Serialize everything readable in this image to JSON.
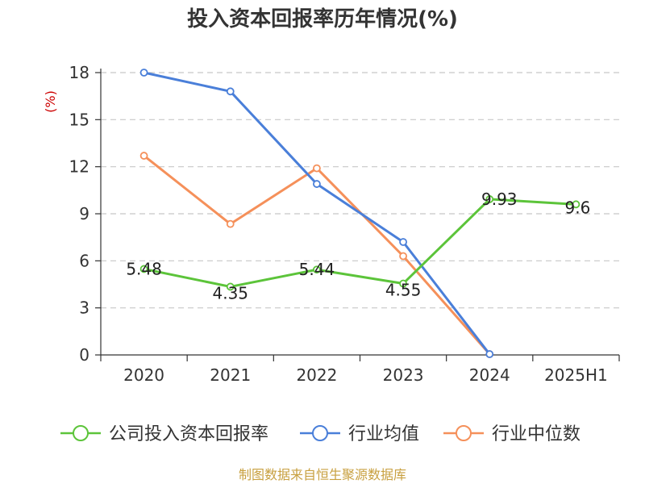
{
  "chart_data": {
    "type": "line",
    "title": "投入资本回报率历年情况(%)",
    "ylabel": "(%)",
    "categories": [
      "2020",
      "2021",
      "2022",
      "2023",
      "2024",
      "2025H1"
    ],
    "ylim": [
      0,
      18
    ],
    "yticks": [
      0,
      3,
      6,
      9,
      12,
      15,
      18
    ],
    "grid": true,
    "legend_position": "bottom",
    "series": [
      {
        "name": "公司投入资本回报率",
        "color": "#5cc43a",
        "values": [
          5.48,
          4.35,
          5.44,
          4.55,
          9.93,
          9.6
        ],
        "labels": [
          "5.48",
          "4.35",
          "5.44",
          "4.55",
          "9.93",
          "9.6"
        ]
      },
      {
        "name": "行业均值",
        "color": "#4a7fd9",
        "values": [
          18.0,
          16.8,
          10.9,
          7.2,
          0.05,
          null
        ]
      },
      {
        "name": "行业中位数",
        "color": "#f5905a",
        "values": [
          12.7,
          8.35,
          11.9,
          6.3,
          0.05,
          null
        ]
      }
    ],
    "source": "制图数据来自恒生聚源数据库"
  }
}
